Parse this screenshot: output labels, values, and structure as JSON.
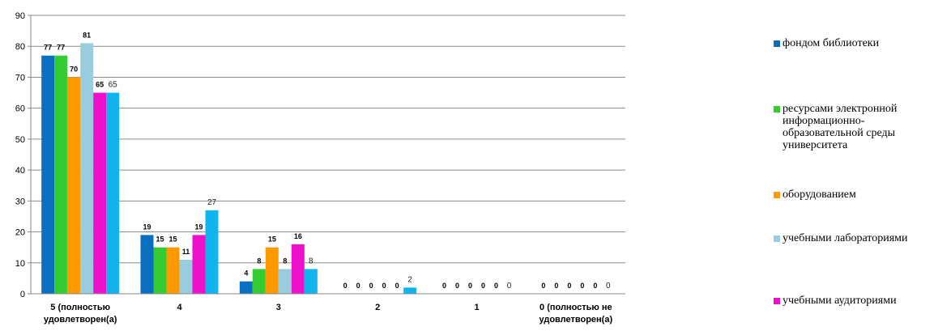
{
  "chart_data": {
    "type": "bar",
    "categories": [
      [
        "5 (полностью",
        "удовлетворен(а)"
      ],
      [
        "4"
      ],
      [
        "3"
      ],
      [
        "2"
      ],
      [
        "1"
      ],
      [
        "0 (полностью не",
        "удовлетворен(а)"
      ]
    ],
    "series": [
      {
        "name": "фондом библиотеки",
        "color": "#0B6FC0",
        "values": [
          77,
          19,
          4,
          0,
          0,
          0
        ]
      },
      {
        "name": "ресурсами электронной информационно-образовательной среды университета",
        "color": "#33CC33",
        "values": [
          77,
          15,
          8,
          0,
          0,
          0
        ]
      },
      {
        "name": "оборудованием",
        "color": "#FF9900",
        "values": [
          70,
          15,
          15,
          0,
          0,
          0
        ]
      },
      {
        "name": "учебными лабораториями",
        "color": "#99CCDD",
        "values": [
          81,
          11,
          8,
          0,
          0,
          0
        ]
      },
      {
        "name": "учебными аудиториями",
        "color": "#EE11CC",
        "values": [
          65,
          19,
          16,
          0,
          0,
          0
        ]
      },
      {
        "name": "",
        "color": "#11B4EE",
        "values": [
          65,
          27,
          8,
          2,
          0,
          0
        ]
      }
    ],
    "ylim": [
      0,
      90
    ],
    "yticks": [
      0,
      10,
      20,
      30,
      40,
      50,
      60,
      70,
      80,
      90
    ],
    "grid": true,
    "legend": "right"
  },
  "legend_lines": [
    [
      "фондом библиотеки"
    ],
    [
      "ресурсами электронной",
      "информационно-",
      "образовательной среды",
      "университета"
    ],
    [
      "оборудованием"
    ],
    [
      "учебными лабораториями"
    ],
    [
      "учебными аудиториями"
    ]
  ]
}
